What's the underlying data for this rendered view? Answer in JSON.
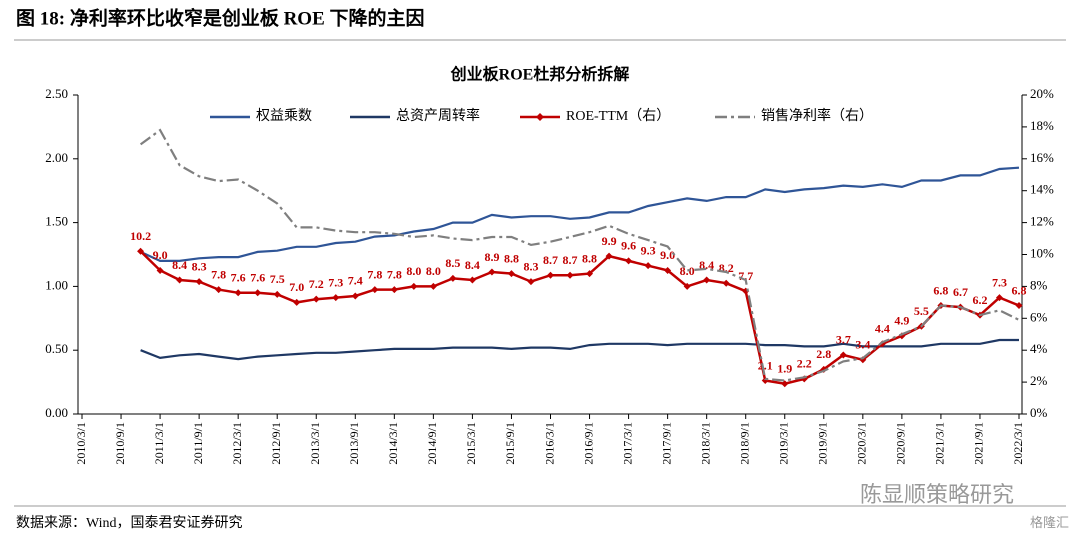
{
  "header": {
    "title": "图 18: 净利率环比收窄是创业板 ROE 下降的主因"
  },
  "source": "数据来源：Wind，国泰君安证券研究",
  "watermark": {
    "account": "陈显顺策略研究",
    "site": "格隆汇"
  },
  "chart_data": {
    "type": "line",
    "title": "创业板ROE杜邦分析拆解",
    "categories": [
      "2010/3/1",
      null,
      "2010/9/1",
      null,
      "2011/3/1",
      null,
      "2011/9/1",
      null,
      "2012/3/1",
      null,
      "2012/9/1",
      null,
      "2013/3/1",
      null,
      "2013/9/1",
      null,
      "2014/3/1",
      null,
      "2014/9/1",
      null,
      "2015/3/1",
      null,
      "2015/9/1",
      null,
      "2016/3/1",
      null,
      "2016/9/1",
      null,
      "2017/3/1",
      null,
      "2017/9/1",
      null,
      "2018/3/1",
      null,
      "2018/9/1",
      null,
      "2019/3/1",
      null,
      "2019/9/1",
      null,
      "2020/3/1",
      null,
      "2020/9/1",
      null,
      "2021/3/1",
      null,
      "2021/9/1",
      null,
      "2022/3/1"
    ],
    "ylim": [
      0,
      2.5
    ],
    "yticks": [
      {
        "value": 0,
        "label": "0.00"
      },
      {
        "value": 0.5,
        "label": "0.50"
      },
      {
        "value": 1,
        "label": "1.00"
      },
      {
        "value": 1.5,
        "label": "1.50"
      },
      {
        "value": 2,
        "label": "2.00"
      },
      {
        "value": 2.5,
        "label": "2.50"
      }
    ],
    "y2lim": [
      0,
      20
    ],
    "y2ticks": [
      {
        "value": 0,
        "label": "0%"
      },
      {
        "value": 2,
        "label": "2%"
      },
      {
        "value": 4,
        "label": "4%"
      },
      {
        "value": 6,
        "label": "6%"
      },
      {
        "value": 8,
        "label": "8%"
      },
      {
        "value": 10,
        "label": "10%"
      },
      {
        "value": 12,
        "label": "12%"
      },
      {
        "value": 14,
        "label": "14%"
      },
      {
        "value": 16,
        "label": "16%"
      },
      {
        "value": 18,
        "label": "18%"
      },
      {
        "value": 20,
        "label": "20%"
      }
    ],
    "grid": false,
    "legend": "top",
    "series": [
      {
        "name": "权益乘数",
        "color": "#2f5597",
        "style": "solid",
        "values": [
          null,
          null,
          null,
          1.27,
          1.2,
          1.2,
          1.22,
          1.23,
          1.23,
          1.27,
          1.28,
          1.31,
          1.31,
          1.34,
          1.35,
          1.39,
          1.4,
          1.43,
          1.45,
          1.5,
          1.5,
          1.56,
          1.54,
          1.55,
          1.55,
          1.53,
          1.54,
          1.58,
          1.58,
          1.63,
          1.66,
          1.69,
          1.67,
          1.7,
          1.7,
          1.76,
          1.74,
          1.76,
          1.77,
          1.79,
          1.78,
          1.8,
          1.78,
          1.83,
          1.83,
          1.87,
          1.87,
          1.92,
          1.93
        ]
      },
      {
        "name": "总资产周转率",
        "color": "#1f3864",
        "style": "solid",
        "values": [
          null,
          null,
          null,
          0.5,
          0.44,
          0.46,
          0.47,
          0.45,
          0.43,
          0.45,
          0.46,
          0.47,
          0.48,
          0.48,
          0.49,
          0.5,
          0.51,
          0.51,
          0.51,
          0.52,
          0.52,
          0.52,
          0.51,
          0.52,
          0.52,
          0.51,
          0.54,
          0.55,
          0.55,
          0.55,
          0.54,
          0.55,
          0.55,
          0.55,
          0.55,
          0.54,
          0.54,
          0.53,
          0.53,
          0.55,
          0.53,
          0.53,
          0.53,
          0.53,
          0.55,
          0.55,
          0.55,
          0.58,
          0.58
        ]
      },
      {
        "name": "ROE-TTM（右）",
        "color": "#c00000",
        "style": "marker",
        "axis": "y2",
        "values": [
          null,
          null,
          null,
          10.2,
          9.0,
          8.4,
          8.3,
          7.8,
          7.6,
          7.6,
          7.5,
          7.0,
          7.2,
          7.3,
          7.4,
          7.8,
          7.8,
          8.0,
          8.0,
          8.5,
          8.4,
          8.9,
          8.8,
          8.3,
          8.7,
          8.7,
          8.8,
          9.9,
          9.6,
          9.3,
          9.0,
          8.0,
          8.4,
          8.2,
          7.7,
          2.1,
          1.9,
          2.2,
          2.8,
          3.7,
          3.4,
          4.4,
          4.9,
          5.5,
          6.8,
          6.7,
          6.2,
          7.3,
          6.8
        ],
        "value_labels": [
          null,
          null,
          null,
          "10.2",
          "9.0",
          "8.4",
          "8.3",
          "7.8",
          "7.6",
          "7.6",
          "7.5",
          "7.0",
          "7.2",
          "7.3",
          "7.4",
          "7.8",
          "7.8",
          "8.0",
          "8.0",
          "8.5",
          "8.4",
          "8.9",
          "8.8",
          "8.3",
          "8.7",
          "8.7",
          "8.8",
          "9.9",
          "9.6",
          "9.3",
          "9.0",
          "8.0",
          "8.4",
          "8.2",
          "7.7",
          "2.1",
          "1.9",
          "2.2",
          "2.8",
          "3.7",
          "3.4",
          "4.4",
          "4.9",
          "5.5",
          "6.8",
          "6.7",
          "6.2",
          "7.3",
          "6.8"
        ]
      },
      {
        "name": "销售净利率（右）",
        "color": "#7f7f7f",
        "style": "dashdot",
        "axis": "y2",
        "values": [
          null,
          null,
          null,
          16.9,
          17.8,
          15.6,
          14.9,
          14.6,
          14.7,
          14.0,
          13.2,
          11.7,
          11.7,
          11.5,
          11.4,
          11.4,
          11.3,
          11.1,
          11.2,
          11.0,
          10.9,
          11.1,
          11.1,
          10.6,
          10.8,
          11.1,
          11.4,
          11.8,
          11.3,
          10.9,
          10.5,
          9.0,
          9.1,
          8.9,
          8.4,
          2.2,
          2.1,
          2.3,
          2.7,
          3.3,
          3.5,
          4.5,
          5.0,
          5.5,
          6.8,
          6.7,
          6.2,
          6.5,
          5.9
        ]
      }
    ]
  }
}
